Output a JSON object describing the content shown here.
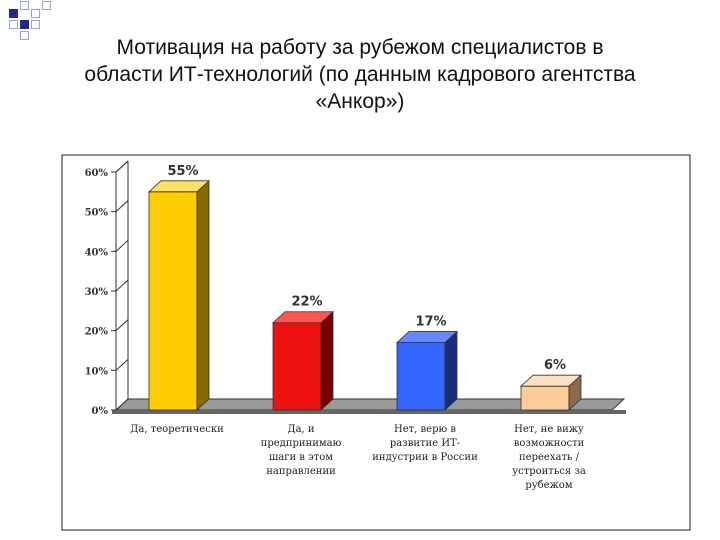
{
  "slide": {
    "title_line1": "Мотивация на работу за рубежом специалистов в",
    "title_line2": "области ИТ-технологий (по данным кадрового агентства",
    "title_line3": "«Анкор»)"
  },
  "chart_data": {
    "type": "bar",
    "title": "",
    "xlabel": "",
    "ylabel": "",
    "ylim": [
      0,
      60
    ],
    "yticks": [
      "0%",
      "10%",
      "20%",
      "30%",
      "40%",
      "50%",
      "60%"
    ],
    "categories": [
      [
        "Да, теоретически"
      ],
      [
        "Да, и",
        "предпринимаю",
        "шаги в этом",
        "направлении"
      ],
      [
        "Нет, верю в",
        "развитие ИТ-",
        "индустрии в России"
      ],
      [
        "Нет, не вижу",
        "возможности",
        "переехать /",
        "устроиться за",
        "рубежом"
      ]
    ],
    "values": [
      55,
      22,
      17,
      6
    ],
    "data_labels": [
      "55%",
      "22%",
      "17%",
      "6%"
    ],
    "colors": [
      "#FFCC00",
      "#EE1111",
      "#3366FF",
      "#FFCC99"
    ],
    "side_colors": [
      "#8A6A00",
      "#7A0000",
      "#1A2E77",
      "#8A6A4A"
    ],
    "top_colors": [
      "#FFE066",
      "#FF5555",
      "#6688FF",
      "#FFE0C0"
    ],
    "grid": false,
    "legend": "none",
    "style": "3d-column"
  }
}
